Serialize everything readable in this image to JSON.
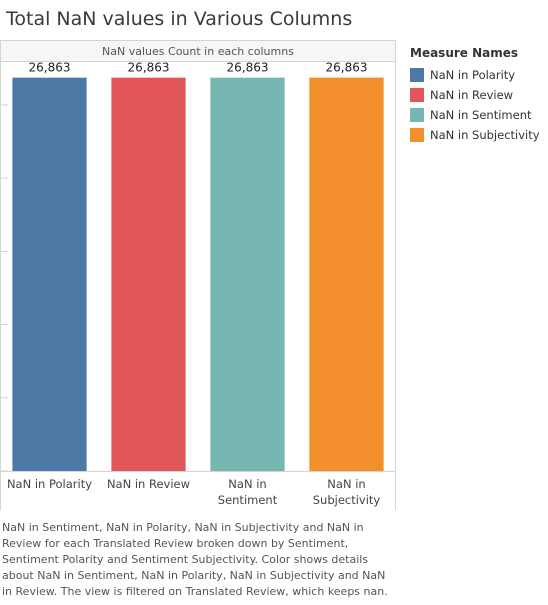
{
  "title": "Total NaN values in Various Columns",
  "chart_data": {
    "type": "bar",
    "header": "NaN values Count in each columns",
    "categories": [
      "NaN in Polarity",
      "NaN in Review",
      "NaN in Sentiment",
      "NaN in Subjectivity"
    ],
    "category_tick_lines": [
      [
        "NaN in Polarity"
      ],
      [
        "NaN in Review"
      ],
      [
        "NaN in",
        "Sentiment"
      ],
      [
        "NaN in",
        "Subjectivity"
      ]
    ],
    "values": [
      26863,
      26863,
      26863,
      26863
    ],
    "value_labels": [
      "26,863",
      "26,863",
      "26,863",
      "26,863"
    ],
    "colors": [
      "#4e79a7",
      "#e15759",
      "#76b7b2",
      "#f28e2b"
    ],
    "ylim": [
      0,
      28000
    ],
    "grid": true,
    "legend_placement": "right"
  },
  "legend": {
    "title": "Measure Names",
    "items": [
      {
        "label": "NaN in Polarity",
        "color": "#4e79a7"
      },
      {
        "label": "NaN in Review",
        "color": "#e15759"
      },
      {
        "label": "NaN in Sentiment",
        "color": "#76b7b2"
      },
      {
        "label": "NaN in Subjectivity",
        "color": "#f28e2b"
      }
    ]
  },
  "caption": "NaN in Sentiment, NaN in Polarity, NaN in Subjectivity and NaN in Review for each Translated Review broken down by Sentiment, Sentiment Polarity and Sentiment Subjectivity.  Color shows details about NaN in Sentiment, NaN in Polarity, NaN in Subjectivity and NaN in Review. The view is filtered on Translated Review, which keeps nan."
}
